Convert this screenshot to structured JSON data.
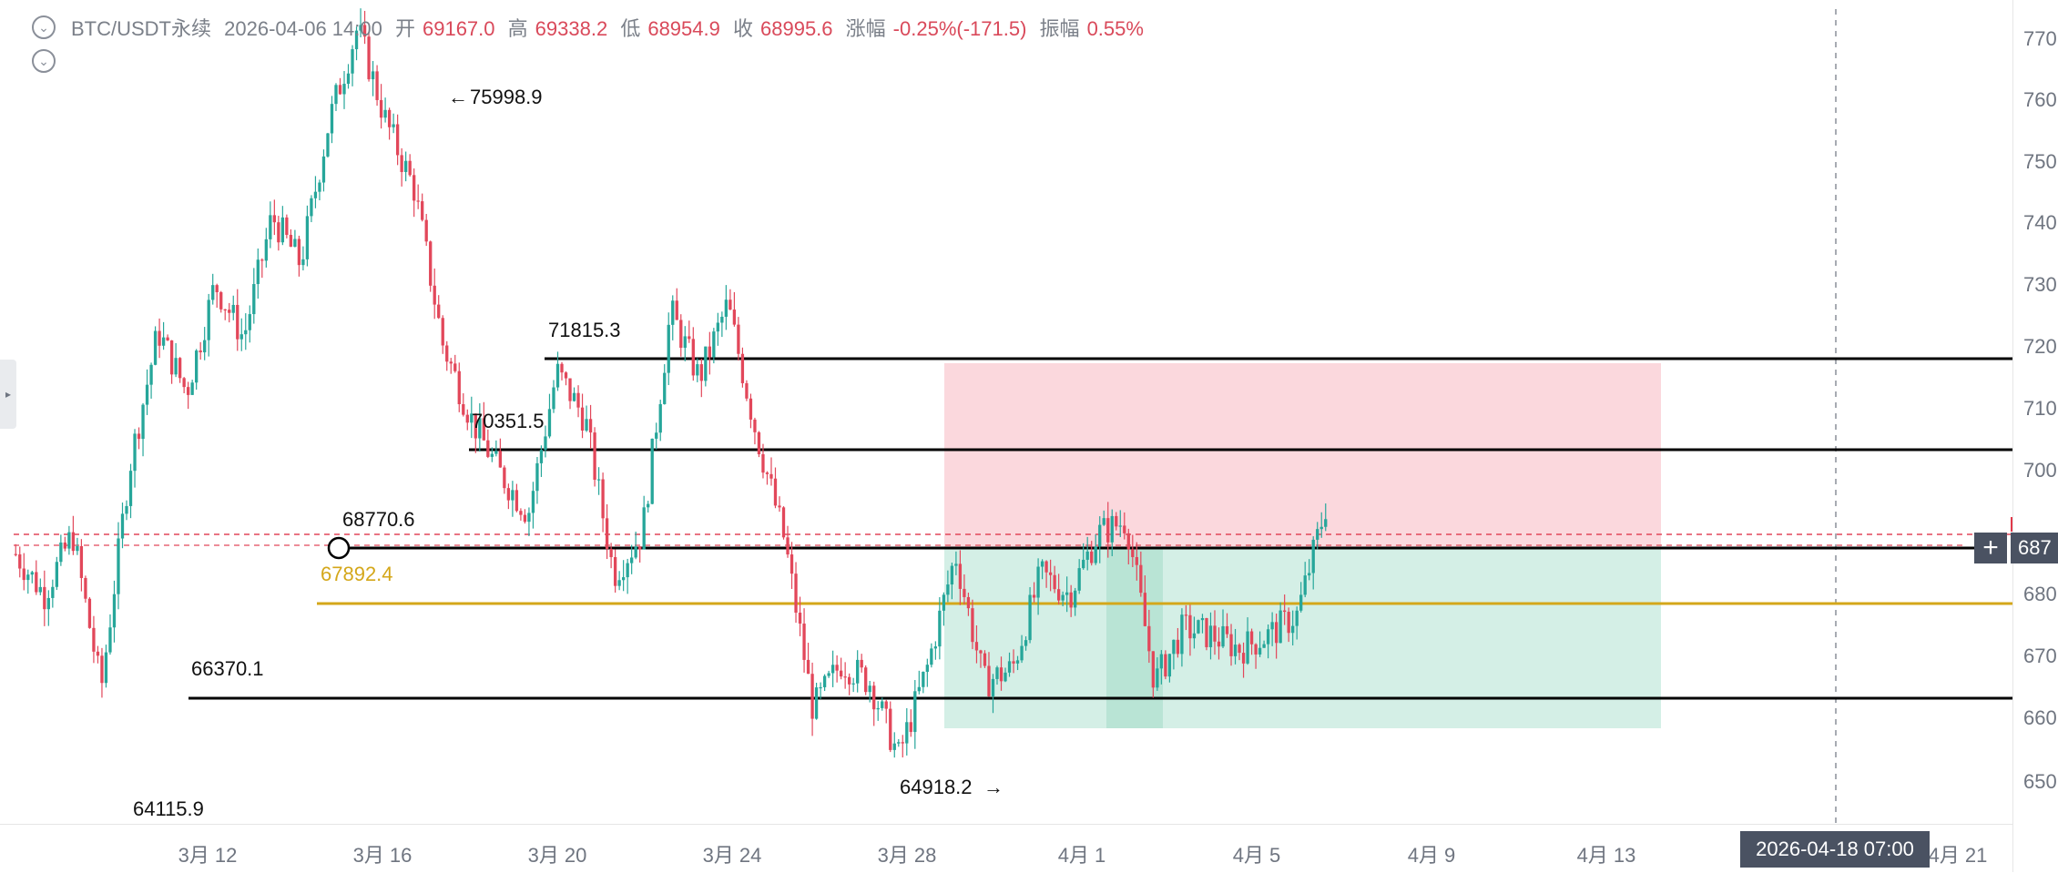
{
  "header": {
    "symbol": "BTC/USDT永续",
    "datetime": "2026-04-06 14:00",
    "open_label": "开",
    "open_value": "69167.0",
    "high_label": "高",
    "high_value": "69338.2",
    "low_label": "低",
    "low_value": "68954.9",
    "close_label": "收",
    "close_value": "68995.6",
    "change_label": "涨幅",
    "change_value": "-0.25%(-171.5)",
    "amplitude_label": "振幅",
    "amplitude_value": "0.55%",
    "toggle_icon_1": "chevron-down-icon",
    "toggle_icon_2": "chevron-down-icon"
  },
  "levels": {
    "peak": "75998.9",
    "r2": "71815.3",
    "r1": "70351.5",
    "mid": "68770.6",
    "gold": "67892.4",
    "s1": "66370.1",
    "low_marker": "64918.2",
    "low_left": "64115.9"
  },
  "time_axis": [
    "3月 12",
    "3月 16",
    "3月 20",
    "3月 24",
    "3月 28",
    "4月 1",
    "4月 5",
    "4月 9",
    "4月 13",
    "4月 21"
  ],
  "crosshair": {
    "time_label": "2026-04-18 07:00",
    "price_label": "687"
  },
  "price_axis": [
    "770",
    "760",
    "750",
    "740",
    "730",
    "720",
    "710",
    "700",
    "680",
    "670",
    "660",
    "650"
  ],
  "colors": {
    "up": "#26a69a",
    "down": "#e2475a",
    "gold_line": "#d4a71a",
    "loss_zone": "#fbd3d9",
    "profit_zone": "#cfeee3"
  },
  "chart_data": {
    "type": "candlestick",
    "series": [
      {
        "values": [
          68200,
          67600,
          68500,
          66200,
          69500,
          71500,
          70600,
          72200,
          71400,
          73200,
          72500,
          74600,
          75998.9,
          74600,
          73600,
          71300,
          70200,
          69400,
          68800,
          70900,
          70200,
          67900,
          68500,
          71800,
          70800,
          71900,
          70000,
          68400,
          65900,
          66600,
          66300,
          65200,
          66500,
          68200,
          66300,
          66500,
          67900,
          67600,
          68500,
          68700,
          66300,
          67100,
          67000,
          66800,
          67000,
          67300,
          68900
        ]
      }
    ],
    "ylim": [
      64000,
      77200
    ]
  }
}
